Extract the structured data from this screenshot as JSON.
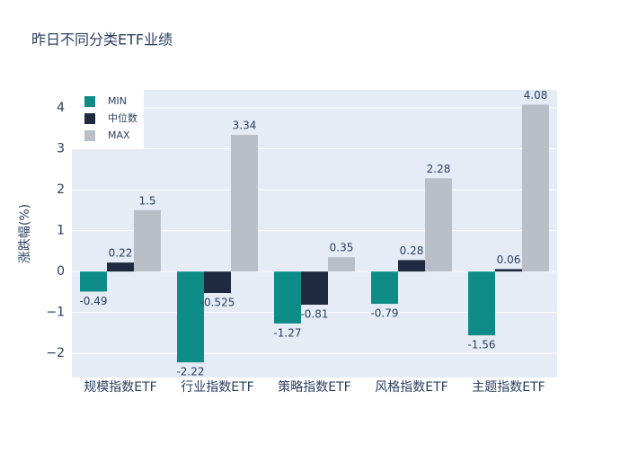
{
  "chart_data": {
    "type": "bar",
    "title": "昨日不同分类ETF业绩",
    "y_label": "涨跌幅(%)",
    "categories": [
      "规模指数ETF",
      "行业指数ETF",
      "策略指数ETF",
      "风格指数ETF",
      "主题指数ETF"
    ],
    "series": [
      {
        "name": "MIN",
        "color": "#0e8c87",
        "values": [
          -0.49,
          -2.22,
          -1.27,
          -0.79,
          -1.56
        ]
      },
      {
        "name": "中位数",
        "color": "#1f2a40",
        "values": [
          0.22,
          -0.525,
          -0.81,
          0.28,
          0.06
        ]
      },
      {
        "name": "MAX",
        "color": "#b8bfc7",
        "values": [
          1.5,
          3.34,
          0.35,
          2.28,
          4.08
        ]
      }
    ],
    "ylim": [
      -2.59,
      4.44
    ],
    "yticks": [
      {
        "value": -2,
        "label": "−2"
      },
      {
        "value": -1,
        "label": "−1"
      },
      0,
      1,
      2,
      3,
      4
    ],
    "grid": true,
    "legend": "top-left"
  }
}
